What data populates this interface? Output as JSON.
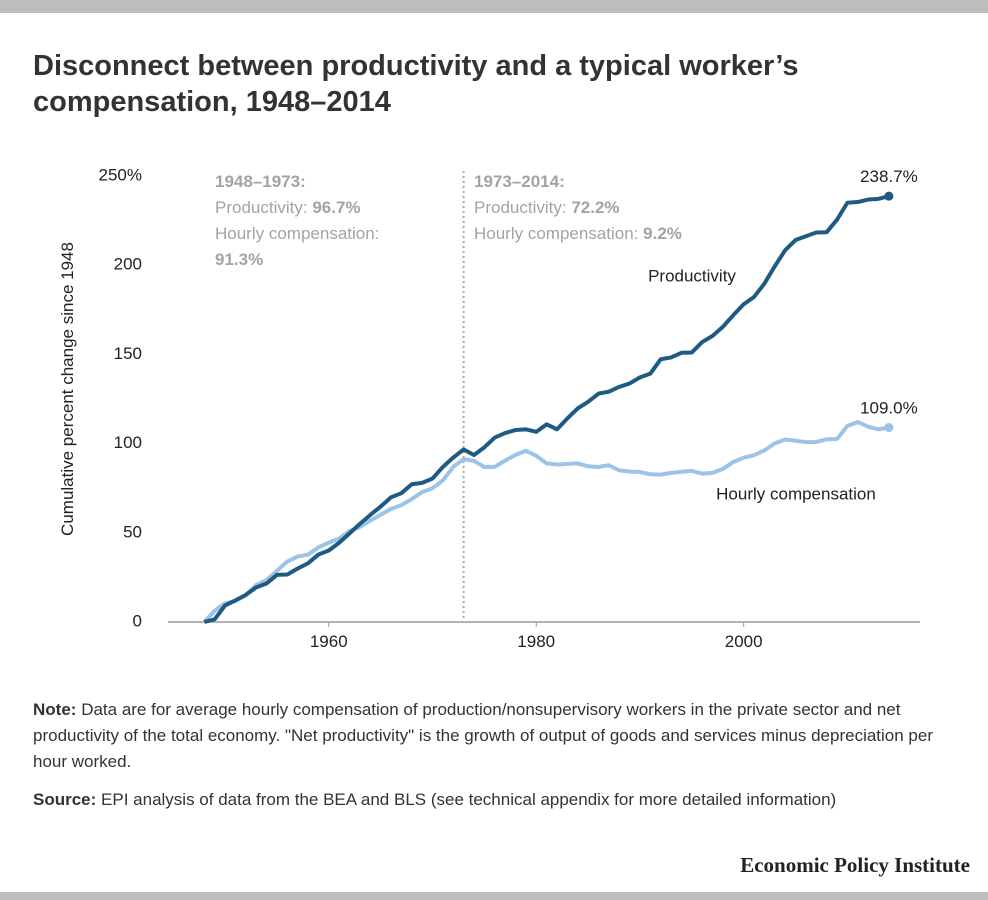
{
  "chart_data": {
    "type": "line",
    "title": "Disconnect between productivity and a typical worker’s compensation, 1948–2014",
    "y_label": "Cumulative percent change since 1948",
    "x": [
      1948,
      1949,
      1950,
      1951,
      1952,
      1953,
      1954,
      1955,
      1956,
      1957,
      1958,
      1959,
      1960,
      1961,
      1962,
      1963,
      1964,
      1965,
      1966,
      1967,
      1968,
      1969,
      1970,
      1971,
      1972,
      1973,
      1974,
      1975,
      1976,
      1977,
      1978,
      1979,
      1980,
      1981,
      1982,
      1983,
      1984,
      1985,
      1986,
      1987,
      1988,
      1989,
      1990,
      1991,
      1992,
      1993,
      1994,
      1995,
      1996,
      1997,
      1998,
      1999,
      2000,
      2001,
      2002,
      2003,
      2004,
      2005,
      2006,
      2007,
      2008,
      2009,
      2010,
      2011,
      2012,
      2013,
      2014
    ],
    "series": [
      {
        "name": "Productivity",
        "color": "#1f5a82",
        "values": [
          0,
          1.5,
          9.3,
          12.1,
          15.2,
          19.4,
          21.6,
          26.4,
          26.6,
          30.0,
          32.9,
          37.8,
          40.1,
          44.4,
          49.7,
          55.0,
          60.0,
          64.7,
          69.9,
          72.2,
          77.2,
          78.0,
          80.4,
          86.9,
          92.2,
          96.7,
          93.6,
          97.9,
          103.4,
          105.9,
          107.6,
          108.0,
          106.6,
          110.8,
          108.0,
          114.1,
          119.7,
          123.4,
          128.0,
          129.1,
          131.8,
          133.7,
          137.1,
          139.2,
          147.3,
          148.3,
          150.9,
          151.1,
          156.9,
          160.4,
          165.5,
          172.0,
          178.1,
          182.2,
          189.7,
          199.4,
          208.4,
          214.1,
          216.2,
          218.3,
          218.5,
          225.5,
          235.0,
          235.4,
          236.8,
          237.2,
          238.7
        ],
        "value_labels": [
          null,
          null,
          null,
          null,
          null,
          null,
          null,
          null,
          null,
          null,
          null,
          null,
          null,
          null,
          null,
          null,
          null,
          null,
          null,
          null,
          null,
          null,
          null,
          null,
          null,
          null,
          null,
          null,
          null,
          null,
          null,
          null,
          null,
          null,
          null,
          null,
          null,
          null,
          null,
          null,
          null,
          null,
          null,
          null,
          null,
          null,
          null,
          null,
          null,
          null,
          null,
          null,
          null,
          null,
          null,
          null,
          null,
          null,
          null,
          null,
          null,
          null,
          null,
          null,
          null,
          null,
          "238.7%"
        ]
      },
      {
        "name": "Hourly compensation",
        "color": "#9cc3e8",
        "values": [
          0,
          6.3,
          10.5,
          11.8,
          15.0,
          20.8,
          23.5,
          28.7,
          33.9,
          36.7,
          37.8,
          41.8,
          44.5,
          46.8,
          50.9,
          53.3,
          56.8,
          60.1,
          63.4,
          65.5,
          68.9,
          72.8,
          75.0,
          79.4,
          87.0,
          91.3,
          90.3,
          86.9,
          87.0,
          90.4,
          93.7,
          96.0,
          93.2,
          88.9,
          88.3,
          88.6,
          88.9,
          87.3,
          86.9,
          87.9,
          85.0,
          84.3,
          84.1,
          82.8,
          82.6,
          83.6,
          84.2,
          84.7,
          83.2,
          83.6,
          85.8,
          89.7,
          92.1,
          93.5,
          96.2,
          100.1,
          102.3,
          101.6,
          100.8,
          100.9,
          102.4,
          102.6,
          109.9,
          112.1,
          109.5,
          108.0,
          109.0
        ],
        "value_labels": [
          null,
          null,
          null,
          null,
          null,
          null,
          null,
          null,
          null,
          null,
          null,
          null,
          null,
          null,
          null,
          null,
          null,
          null,
          null,
          null,
          null,
          null,
          null,
          null,
          null,
          null,
          null,
          null,
          null,
          null,
          null,
          null,
          null,
          null,
          null,
          null,
          null,
          null,
          null,
          null,
          null,
          null,
          null,
          null,
          null,
          null,
          null,
          null,
          null,
          null,
          null,
          null,
          null,
          null,
          null,
          null,
          null,
          null,
          null,
          null,
          null,
          null,
          null,
          null,
          null,
          null,
          "109.0%"
        ]
      }
    ],
    "xlim": [
      1944.5,
      2017
    ],
    "ylim": [
      0,
      250
    ],
    "xticks": [
      1960,
      1980,
      2000
    ],
    "yticks": [
      0,
      50,
      100,
      150,
      200,
      {
        "value": 250,
        "label": "250%"
      }
    ],
    "annotations": [
      {
        "heading": "1948–1973:",
        "lines": [
          {
            "label": "Productivity:",
            "value": "96.7%"
          },
          {
            "label": "Hourly compensation:",
            "value": "91.3%"
          }
        ]
      },
      {
        "heading": "1973–2014:",
        "lines": [
          {
            "label": "Productivity:",
            "value": "72.2%"
          },
          {
            "label": "Hourly compensation:",
            "value": "9.2%"
          }
        ]
      }
    ],
    "note": {
      "label": "Note:",
      "text": "Data are for average hourly compensation of production/nonsupervisory workers in the private sector and net productivity of the total economy. \"Net productivity\" is the growth of output of goods and services minus depreciation per hour worked."
    },
    "source": {
      "label": "Source:",
      "text": "EPI analysis of data from the BEA and BLS (see technical appendix for more detailed information)"
    },
    "credit": "Economic Policy Institute"
  }
}
